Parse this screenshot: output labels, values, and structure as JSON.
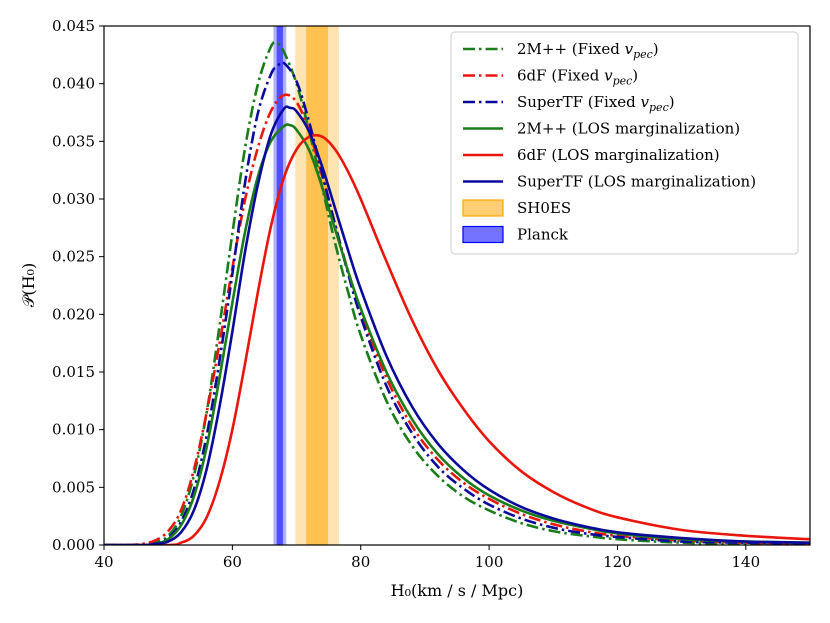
{
  "chart_data": {
    "type": "line",
    "xlabel": "H₀(km / s / Mpc)",
    "ylabel": "𝒫(H₀)",
    "xlim": [
      40,
      150
    ],
    "ylim": [
      0,
      0.045
    ],
    "xticks": [
      "40",
      "60",
      "80",
      "100",
      "120",
      "140"
    ],
    "yticks": [
      "0.000",
      "0.005",
      "0.010",
      "0.015",
      "0.020",
      "0.025",
      "0.030",
      "0.035",
      "0.040",
      "0.045"
    ],
    "grid": false,
    "legend_position": "top-right",
    "bands": [
      {
        "name": "SH0ES",
        "center": 73.2,
        "inner_halfwidth": 1.7,
        "outer_halfwidth": 3.4,
        "color": "#ffa500"
      },
      {
        "name": "Planck",
        "center": 67.4,
        "inner_halfwidth": 0.5,
        "outer_halfwidth": 1.0,
        "color": "#0000ff"
      }
    ],
    "series": [
      {
        "name": "2M++ (Fixed v_pec)",
        "legend_label": "2M++ (Fixed ",
        "legend_sub": "pec",
        "legend_suffix": ")",
        "color": "#1a7d1a",
        "dash": "dashdot",
        "x": [
          40,
          46,
          48,
          50,
          52,
          54,
          56,
          58,
          60,
          62,
          64,
          66,
          67,
          68,
          70,
          72,
          74,
          76,
          78,
          80,
          84,
          88,
          92,
          96,
          100,
          105,
          110,
          115,
          120,
          130,
          140,
          150
        ],
        "y": [
          0,
          0,
          0.0002,
          0.0008,
          0.0025,
          0.006,
          0.0115,
          0.019,
          0.027,
          0.0345,
          0.04,
          0.0432,
          0.0435,
          0.0428,
          0.04,
          0.0358,
          0.031,
          0.0262,
          0.022,
          0.0182,
          0.0125,
          0.0086,
          0.006,
          0.0042,
          0.003,
          0.0019,
          0.0012,
          0.0008,
          0.0005,
          0.0002,
          0.0001,
          5e-05
        ]
      },
      {
        "name": "6dF (Fixed v_pec)",
        "legend_label": "6dF (Fixed ",
        "legend_sub": "pec",
        "legend_suffix": ")",
        "color": "#e8160c",
        "dash": "dashdot",
        "x": [
          40,
          44,
          46,
          48,
          50,
          52,
          54,
          56,
          58,
          60,
          62,
          64,
          66,
          68,
          70,
          72,
          74,
          76,
          78,
          80,
          84,
          88,
          92,
          96,
          100,
          105,
          110,
          115,
          120,
          130,
          140,
          150
        ],
        "y": [
          0,
          0,
          0.0001,
          0.0004,
          0.0012,
          0.003,
          0.0065,
          0.0115,
          0.0175,
          0.024,
          0.03,
          0.0345,
          0.0376,
          0.039,
          0.0384,
          0.0358,
          0.032,
          0.0278,
          0.0238,
          0.0203,
          0.0145,
          0.0103,
          0.0074,
          0.0054,
          0.004,
          0.0027,
          0.0018,
          0.0012,
          0.0008,
          0.0004,
          0.0002,
          0.0001
        ]
      },
      {
        "name": "SuperTF (Fixed v_pec)",
        "legend_label": "SuperTF (Fixed ",
        "legend_sub": "pec",
        "legend_suffix": ")",
        "color": "#0a0a9a",
        "dash": "dashdot",
        "x": [
          40,
          46,
          48,
          50,
          52,
          54,
          56,
          58,
          60,
          62,
          64,
          66,
          67,
          68,
          70,
          72,
          74,
          76,
          78,
          80,
          84,
          88,
          92,
          96,
          100,
          105,
          110,
          115,
          120,
          130,
          140,
          150
        ],
        "y": [
          0,
          0,
          0.0001,
          0.0006,
          0.002,
          0.0048,
          0.0095,
          0.016,
          0.0235,
          0.0315,
          0.0375,
          0.0408,
          0.0415,
          0.0418,
          0.0402,
          0.0366,
          0.0322,
          0.0278,
          0.0236,
          0.0198,
          0.0138,
          0.0097,
          0.0068,
          0.0049,
          0.0035,
          0.0023,
          0.0015,
          0.001,
          0.0007,
          0.0003,
          0.0002,
          0.0001
        ]
      },
      {
        "name": "2M++ (LOS marginalization)",
        "legend_label": "2M++ (LOS marginalization)",
        "color": "#1a7d1a",
        "dash": "solid",
        "x": [
          40,
          46,
          48,
          50,
          52,
          54,
          56,
          58,
          60,
          62,
          64,
          66,
          68,
          69,
          70,
          72,
          74,
          76,
          78,
          80,
          84,
          88,
          92,
          96,
          100,
          105,
          110,
          115,
          120,
          130,
          140,
          150
        ],
        "y": [
          0,
          0,
          0.0001,
          0.0005,
          0.0017,
          0.0042,
          0.0085,
          0.0145,
          0.021,
          0.0272,
          0.032,
          0.035,
          0.0363,
          0.0364,
          0.036,
          0.0342,
          0.031,
          0.0274,
          0.0238,
          0.0205,
          0.015,
          0.0109,
          0.0079,
          0.0058,
          0.0043,
          0.003,
          0.0021,
          0.0015,
          0.001,
          0.0005,
          0.0003,
          0.0002
        ]
      },
      {
        "name": "6dF (LOS marginalization)",
        "legend_label": "6dF (LOS marginalization)",
        "color": "#e8160c",
        "dash": "solid",
        "x": [
          40,
          50,
          52,
          54,
          56,
          58,
          60,
          62,
          64,
          66,
          68,
          70,
          72,
          74,
          76,
          78,
          80,
          84,
          88,
          92,
          96,
          100,
          105,
          110,
          115,
          120,
          130,
          140,
          150
        ],
        "y": [
          0,
          0,
          0.0002,
          0.0008,
          0.0024,
          0.0055,
          0.01,
          0.0158,
          0.022,
          0.0276,
          0.0318,
          0.0343,
          0.0354,
          0.0354,
          0.0343,
          0.0324,
          0.03,
          0.0246,
          0.0195,
          0.0152,
          0.0118,
          0.009,
          0.0064,
          0.0046,
          0.0033,
          0.0024,
          0.0013,
          0.0008,
          0.0005
        ]
      },
      {
        "name": "SuperTF (LOS marginalization)",
        "legend_label": "SuperTF (LOS marginalization)",
        "color": "#0a0a9a",
        "dash": "solid",
        "x": [
          40,
          46,
          48,
          50,
          52,
          54,
          56,
          58,
          60,
          62,
          64,
          66,
          68,
          69,
          70,
          72,
          74,
          76,
          78,
          80,
          84,
          88,
          92,
          96,
          100,
          105,
          110,
          115,
          120,
          130,
          140,
          150
        ],
        "y": [
          0,
          0,
          0.0001,
          0.0003,
          0.0011,
          0.003,
          0.0066,
          0.012,
          0.0185,
          0.0255,
          0.0313,
          0.0356,
          0.0378,
          0.0379,
          0.0376,
          0.0358,
          0.0328,
          0.0292,
          0.0256,
          0.0222,
          0.0164,
          0.012,
          0.0088,
          0.0065,
          0.0048,
          0.0033,
          0.0023,
          0.0016,
          0.0011,
          0.0006,
          0.0003,
          0.0002
        ]
      }
    ]
  }
}
